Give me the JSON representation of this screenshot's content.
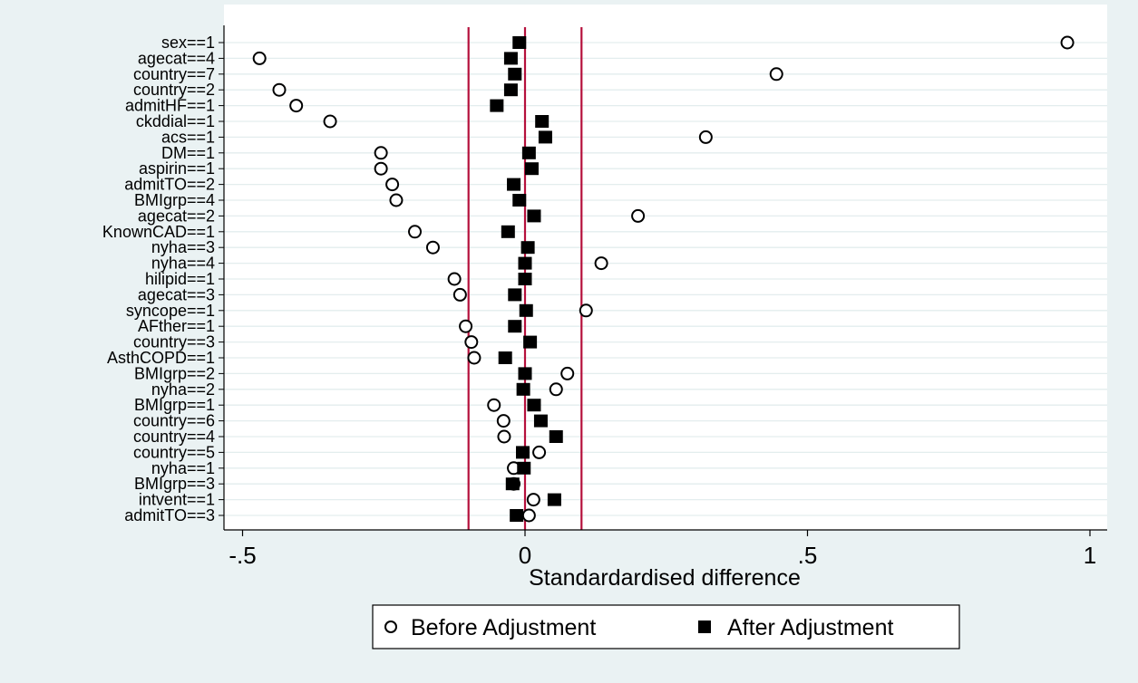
{
  "chart_data": {
    "type": "scatter",
    "title": "",
    "xlabel": "Standardardised difference",
    "ylabel": "",
    "xlim": [
      -0.53,
      1.03
    ],
    "x_ticks": [
      {
        "value": -0.5,
        "label": "-.5"
      },
      {
        "value": 0,
        "label": "0"
      },
      {
        "value": 0.5,
        "label": ".5"
      },
      {
        "value": 1,
        "label": "1"
      }
    ],
    "reference_lines": [
      -0.1,
      0,
      0.1
    ],
    "grid": true,
    "legend_position": "bottom",
    "categories": [
      "sex==1",
      "agecat==4",
      "country==7",
      "country==2",
      "admitHF==1",
      "ckddial==1",
      "acs==1",
      "DM==1",
      "aspirin==1",
      "admitTO==2",
      "BMIgrp==4",
      "agecat==2",
      "KnownCAD==1",
      "nyha==3",
      "nyha==4",
      "hilipid==1",
      "agecat==3",
      "syncope==1",
      "AFther==1",
      "country==3",
      "AsthCOPD==1",
      "BMIgrp==2",
      "nyha==2",
      "BMIgrp==1",
      "country==6",
      "country==4",
      "country==5",
      "nyha==1",
      "BMIgrp==3",
      "intvent==1",
      "admitTO==3"
    ],
    "series": [
      {
        "name": "Before Adjustment",
        "marker": "hollow-circle",
        "values": [
          0.96,
          -0.47,
          0.445,
          -0.435,
          -0.405,
          -0.345,
          0.32,
          -0.255,
          -0.255,
          -0.235,
          -0.228,
          0.2,
          -0.195,
          -0.163,
          0.135,
          -0.125,
          -0.115,
          0.108,
          -0.105,
          -0.095,
          -0.09,
          0.075,
          0.055,
          -0.055,
          -0.038,
          -0.037,
          0.025,
          -0.02,
          -0.02,
          0.015,
          0.007
        ]
      },
      {
        "name": "After Adjustment",
        "marker": "filled-square",
        "values": [
          -0.01,
          -0.025,
          -0.018,
          -0.025,
          -0.05,
          0.03,
          0.036,
          0.007,
          0.012,
          -0.02,
          -0.01,
          0.016,
          -0.03,
          0.005,
          0.0,
          0.0,
          -0.018,
          0.002,
          -0.018,
          0.009,
          -0.035,
          0.0,
          -0.003,
          0.016,
          0.028,
          0.055,
          -0.004,
          -0.002,
          -0.022,
          0.052,
          -0.015
        ]
      }
    ],
    "colors": {
      "background": "#eaf2f3",
      "plot_bg": "#ffffff",
      "grid": "#e3edee",
      "refline": "#b5103c",
      "marker": "#000000",
      "axis": "#000000"
    }
  }
}
